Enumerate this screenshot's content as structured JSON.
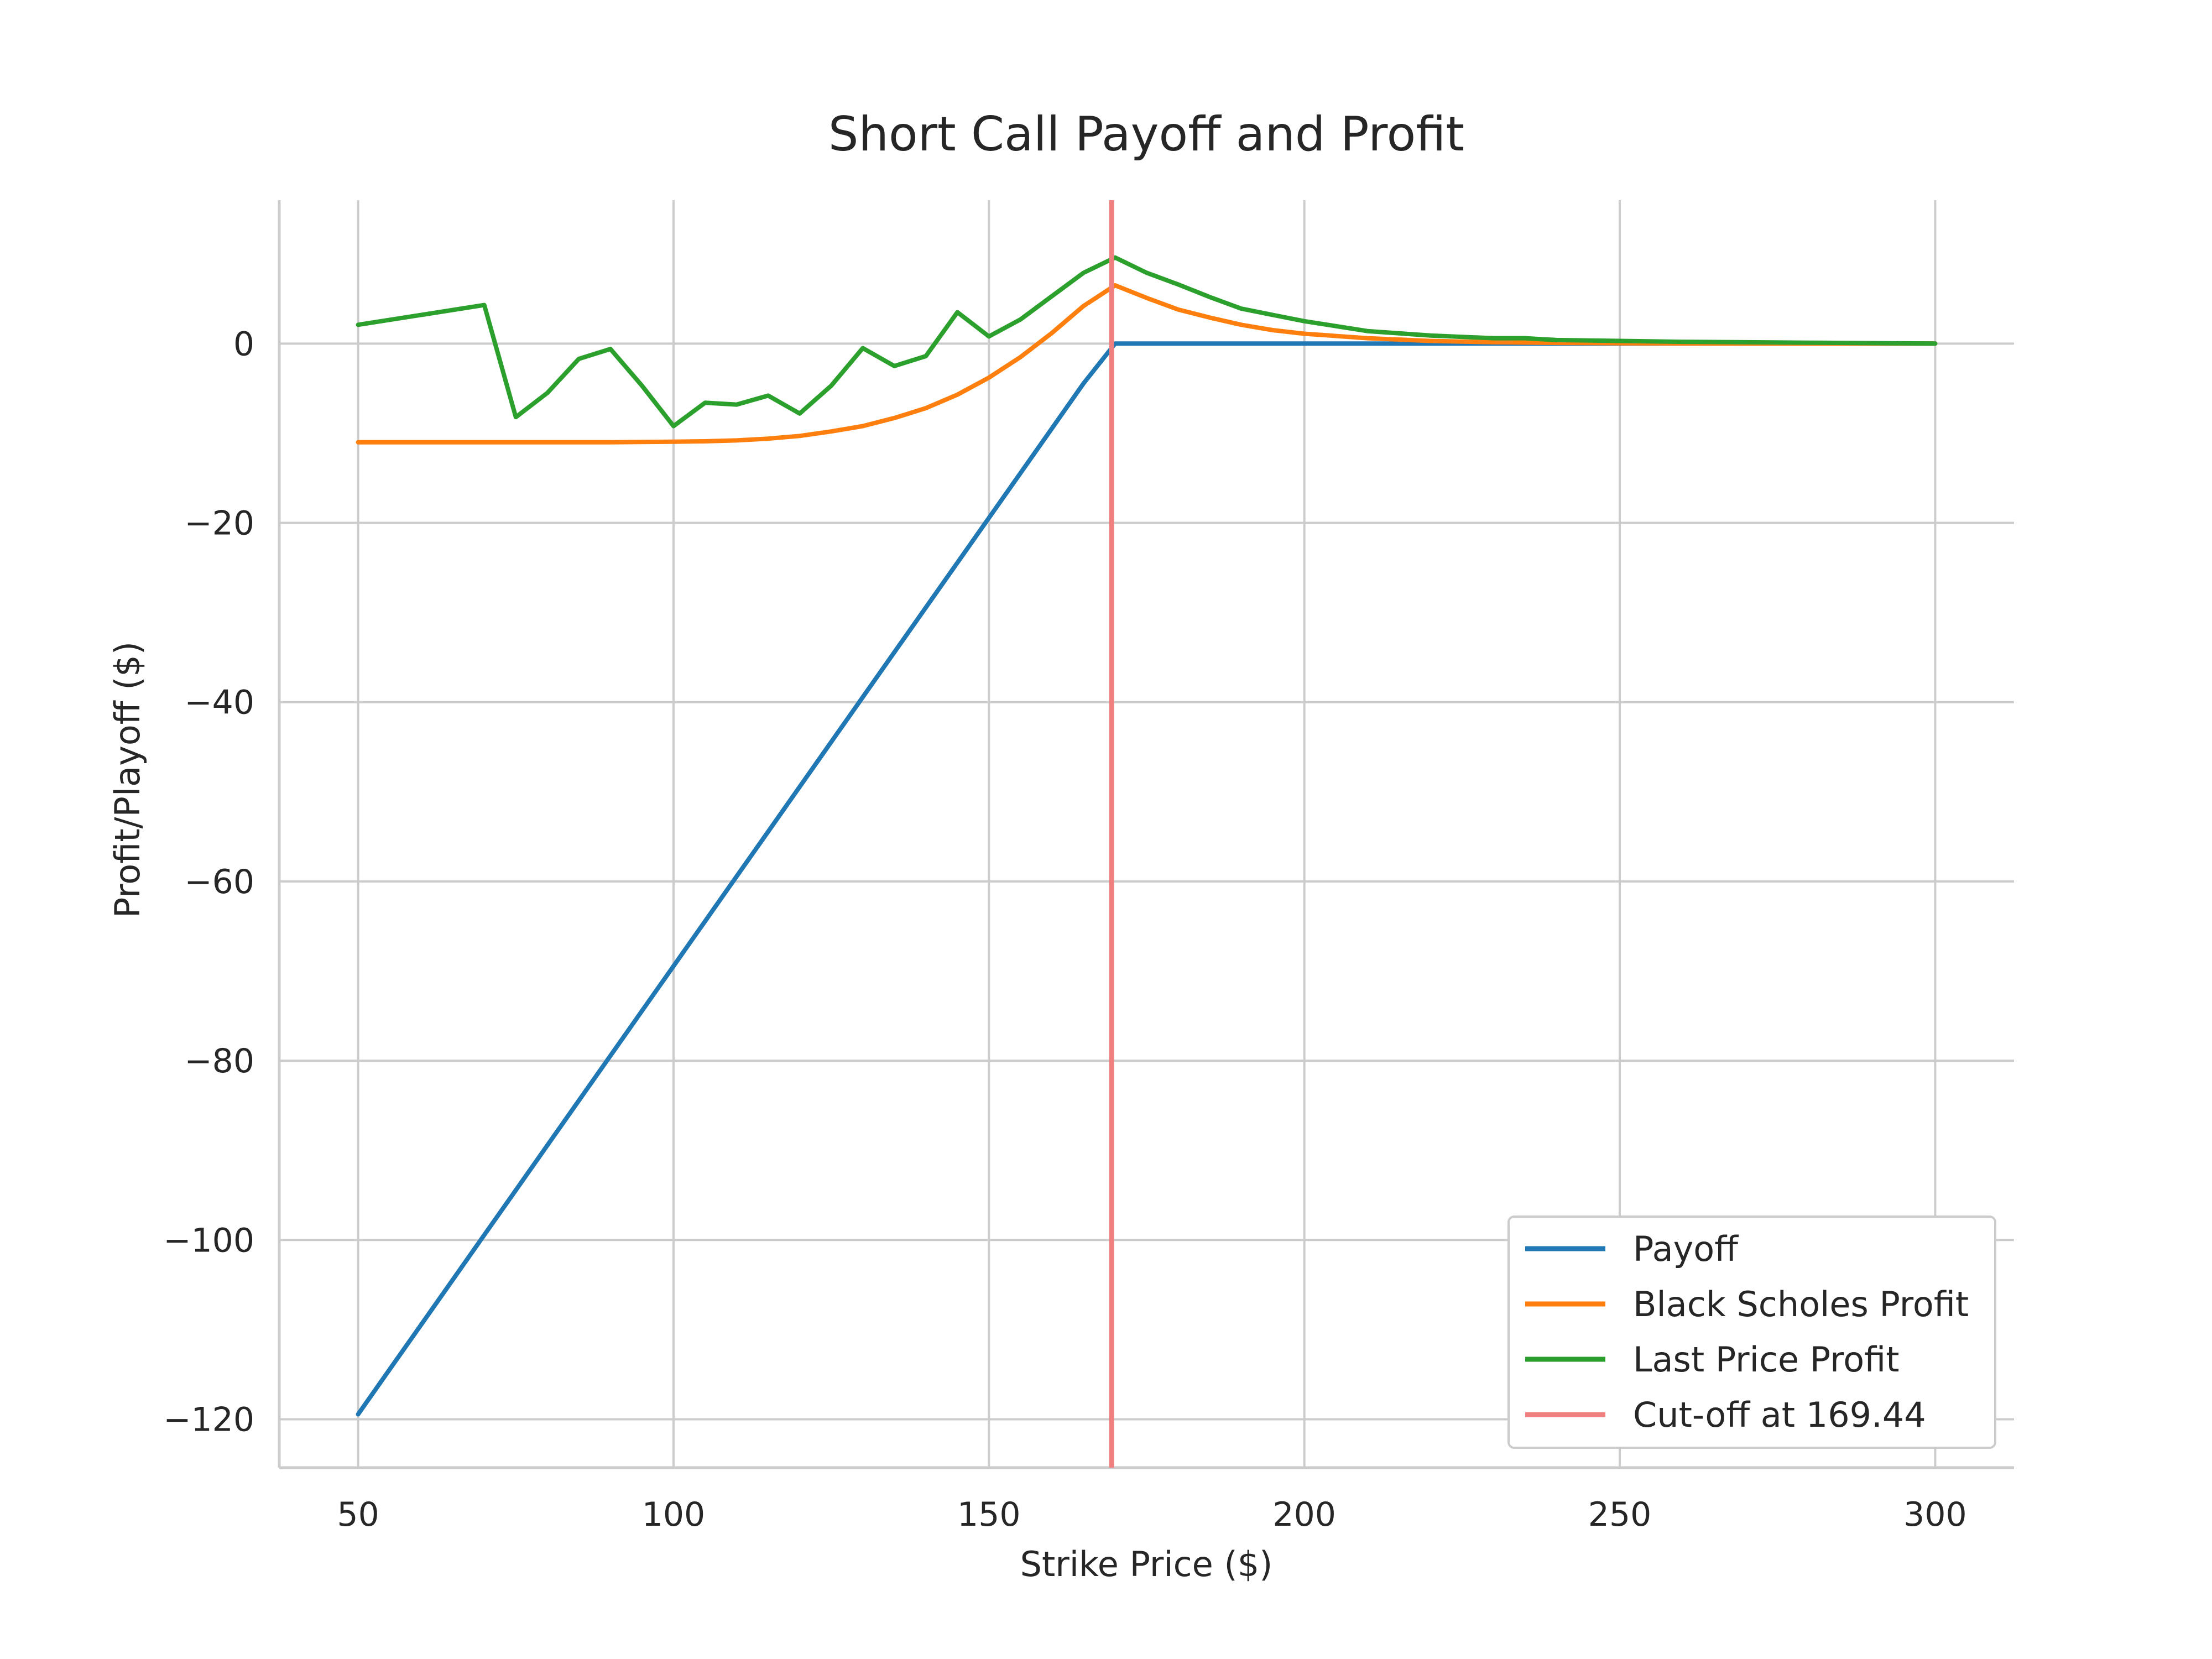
{
  "chart_data": {
    "type": "line",
    "title": "Short Call Payoff and Profit",
    "xlabel": "Strike Price ($)",
    "ylabel": "Profit/Playoff ($)",
    "xlim": [
      37.5,
      312.5
    ],
    "ylim": [
      -125.4,
      16.0
    ],
    "x_ticks": [
      50,
      100,
      150,
      200,
      250,
      300
    ],
    "y_ticks": [
      0,
      -20,
      -40,
      -60,
      -80,
      -100,
      -120
    ],
    "x_tick_labels": [
      "50",
      "100",
      "150",
      "200",
      "250",
      "300"
    ],
    "y_tick_labels": [
      "0",
      "−20",
      "−40",
      "−60",
      "−80",
      "−100",
      "−120"
    ],
    "grid": true,
    "legend_position": "lower-right",
    "series": [
      {
        "name": "Payoff",
        "color": "#1f77b4",
        "x": [
          50,
          55,
          60,
          65,
          70,
          75,
          80,
          85,
          90,
          95,
          100,
          105,
          110,
          115,
          120,
          125,
          130,
          135,
          140,
          145,
          150,
          155,
          160,
          165,
          170,
          175,
          180,
          185,
          190,
          195,
          200,
          210,
          220,
          230,
          240,
          250,
          260,
          270,
          280,
          290,
          300
        ],
        "y": [
          -119.44,
          -114.44,
          -109.44,
          -104.44,
          -99.44,
          -94.44,
          -89.44,
          -84.44,
          -79.44,
          -74.44,
          -69.44,
          -64.44,
          -59.44,
          -54.44,
          -49.44,
          -44.44,
          -39.44,
          -34.44,
          -29.44,
          -24.44,
          -19.44,
          -14.44,
          -9.44,
          -4.44,
          0,
          0,
          0,
          0,
          0,
          0,
          0,
          0,
          0,
          0,
          0,
          0,
          0,
          0,
          0,
          0,
          0
        ]
      },
      {
        "name": "Black Scholes Profit",
        "color": "#ff7f0e",
        "x": [
          50,
          60,
          70,
          80,
          90,
          100,
          105,
          110,
          115,
          120,
          125,
          130,
          135,
          140,
          145,
          150,
          155,
          160,
          165,
          170,
          175,
          180,
          185,
          190,
          195,
          200,
          210,
          220,
          230,
          240,
          250,
          260,
          270,
          280,
          290,
          300
        ],
        "y": [
          -11.0,
          -11.0,
          -11.0,
          -11.0,
          -11.0,
          -10.95,
          -10.9,
          -10.8,
          -10.6,
          -10.3,
          -9.8,
          -9.2,
          -8.3,
          -7.2,
          -5.7,
          -3.8,
          -1.5,
          1.2,
          4.2,
          6.5,
          5.1,
          3.8,
          2.9,
          2.1,
          1.5,
          1.1,
          0.6,
          0.3,
          0.15,
          0.08,
          0.04,
          0.02,
          0.01,
          0.0,
          0.0,
          0.0
        ]
      },
      {
        "name": "Last Price Profit",
        "color": "#2ca02c",
        "x": [
          50,
          70,
          75,
          80,
          85,
          90,
          95,
          100,
          105,
          110,
          115,
          120,
          125,
          130,
          135,
          140,
          145,
          150,
          155,
          160,
          165,
          170,
          175,
          180,
          185,
          190,
          195,
          200,
          210,
          220,
          230,
          235,
          240,
          250,
          260,
          270,
          280,
          290,
          300
        ],
        "y": [
          2.1,
          4.3,
          -8.2,
          -5.5,
          -1.7,
          -0.6,
          -4.7,
          -9.2,
          -6.6,
          -6.8,
          -5.8,
          -7.8,
          -4.7,
          -0.5,
          -2.5,
          -1.4,
          3.5,
          0.8,
          2.7,
          5.3,
          7.9,
          9.6,
          7.9,
          6.6,
          5.2,
          3.9,
          3.2,
          2.5,
          1.4,
          0.9,
          0.6,
          0.6,
          0.4,
          0.3,
          0.2,
          0.15,
          0.1,
          0.05,
          0.0
        ]
      },
      {
        "name": "Cut-off at 169.44",
        "color": "#f08080",
        "vline_x": 169.44
      }
    ]
  }
}
